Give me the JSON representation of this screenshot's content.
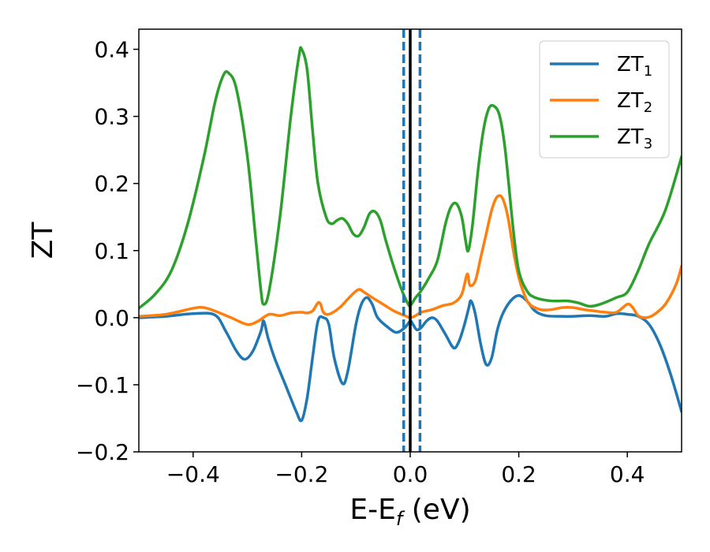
{
  "chart_data": {
    "type": "line",
    "xlabel": "E-E",
    "xlabel_sub": "f",
    "xlabel_unit": " (eV)",
    "ylabel": "ZT",
    "xlim": [
      -0.5,
      0.5
    ],
    "ylim": [
      -0.2,
      0.43
    ],
    "xticks": [
      -0.4,
      -0.2,
      0.0,
      0.2,
      0.4
    ],
    "xtick_labels": [
      "−0.4",
      "−0.2",
      "0.0",
      "0.2",
      "0.4"
    ],
    "yticks": [
      -0.2,
      -0.1,
      0.0,
      0.1,
      0.2,
      0.3,
      0.4
    ],
    "ytick_labels": [
      "−0.2",
      "−0.1",
      "0.0",
      "0.1",
      "0.2",
      "0.3",
      "0.4"
    ],
    "grid": false,
    "legend_position": "top-right",
    "vlines": [
      {
        "x": 0.0,
        "color": "#000000",
        "style": "solid"
      },
      {
        "x": -0.012,
        "color": "#1f77b4",
        "style": "dashed"
      },
      {
        "x": 0.018,
        "color": "#1f77b4",
        "style": "dashed"
      }
    ],
    "series": [
      {
        "name": "ZT",
        "name_sub": "1",
        "color": "#1f77b4",
        "points": [
          [
            -0.5,
            0.0
          ],
          [
            -0.45,
            0.002
          ],
          [
            -0.4,
            0.006
          ],
          [
            -0.36,
            0.004
          ],
          [
            -0.34,
            -0.02
          ],
          [
            -0.32,
            -0.05
          ],
          [
            -0.305,
            -0.062
          ],
          [
            -0.29,
            -0.05
          ],
          [
            -0.275,
            -0.02
          ],
          [
            -0.27,
            -0.005
          ],
          [
            -0.262,
            -0.03
          ],
          [
            -0.25,
            -0.06
          ],
          [
            -0.23,
            -0.1
          ],
          [
            -0.21,
            -0.14
          ],
          [
            -0.2,
            -0.153
          ],
          [
            -0.19,
            -0.12
          ],
          [
            -0.18,
            -0.06
          ],
          [
            -0.17,
            -0.005
          ],
          [
            -0.16,
            0.0
          ],
          [
            -0.15,
            -0.01
          ],
          [
            -0.14,
            -0.06
          ],
          [
            -0.125,
            -0.098
          ],
          [
            -0.115,
            -0.08
          ],
          [
            -0.1,
            -0.01
          ],
          [
            -0.09,
            0.02
          ],
          [
            -0.08,
            0.03
          ],
          [
            -0.07,
            0.02
          ],
          [
            -0.06,
            0.0
          ],
          [
            -0.04,
            -0.015
          ],
          [
            -0.025,
            -0.022
          ],
          [
            -0.01,
            -0.015
          ],
          [
            0.0,
            -0.005
          ],
          [
            0.005,
            -0.01
          ],
          [
            0.012,
            -0.018
          ],
          [
            0.02,
            -0.015
          ],
          [
            0.03,
            -0.005
          ],
          [
            0.04,
            0.0
          ],
          [
            0.05,
            -0.005
          ],
          [
            0.065,
            -0.025
          ],
          [
            0.08,
            -0.045
          ],
          [
            0.09,
            -0.035
          ],
          [
            0.1,
            -0.01
          ],
          [
            0.108,
            0.015
          ],
          [
            0.112,
            0.025
          ],
          [
            0.12,
            0.005
          ],
          [
            0.13,
            -0.04
          ],
          [
            0.14,
            -0.07
          ],
          [
            0.15,
            -0.06
          ],
          [
            0.16,
            -0.02
          ],
          [
            0.17,
            0.005
          ],
          [
            0.185,
            0.025
          ],
          [
            0.2,
            0.033
          ],
          [
            0.215,
            0.025
          ],
          [
            0.23,
            0.01
          ],
          [
            0.25,
            0.003
          ],
          [
            0.28,
            0.002
          ],
          [
            0.3,
            0.002
          ],
          [
            0.33,
            0.003
          ],
          [
            0.36,
            0.002
          ],
          [
            0.38,
            0.006
          ],
          [
            0.4,
            0.005
          ],
          [
            0.42,
            0.002
          ],
          [
            0.44,
            -0.01
          ],
          [
            0.46,
            -0.04
          ],
          [
            0.48,
            -0.085
          ],
          [
            0.5,
            -0.14
          ]
        ]
      },
      {
        "name": "ZT",
        "name_sub": "2",
        "color": "#ff7f0e",
        "points": [
          [
            -0.5,
            0.002
          ],
          [
            -0.45,
            0.005
          ],
          [
            -0.4,
            0.014
          ],
          [
            -0.38,
            0.015
          ],
          [
            -0.36,
            0.01
          ],
          [
            -0.33,
            0.0
          ],
          [
            -0.3,
            -0.01
          ],
          [
            -0.28,
            -0.005
          ],
          [
            -0.26,
            0.005
          ],
          [
            -0.24,
            0.003
          ],
          [
            -0.22,
            0.007
          ],
          [
            -0.2,
            0.008
          ],
          [
            -0.19,
            0.007
          ],
          [
            -0.18,
            0.01
          ],
          [
            -0.17,
            0.022
          ],
          [
            -0.165,
            0.02
          ],
          [
            -0.16,
            0.008
          ],
          [
            -0.15,
            0.005
          ],
          [
            -0.13,
            0.015
          ],
          [
            -0.11,
            0.032
          ],
          [
            -0.095,
            0.042
          ],
          [
            -0.085,
            0.038
          ],
          [
            -0.07,
            0.03
          ],
          [
            -0.05,
            0.02
          ],
          [
            -0.03,
            0.01
          ],
          [
            -0.01,
            0.003
          ],
          [
            0.0,
            0.0
          ],
          [
            0.01,
            0.003
          ],
          [
            0.02,
            0.008
          ],
          [
            0.04,
            0.012
          ],
          [
            0.06,
            0.018
          ],
          [
            0.08,
            0.022
          ],
          [
            0.095,
            0.035
          ],
          [
            0.105,
            0.065
          ],
          [
            0.11,
            0.048
          ],
          [
            0.12,
            0.055
          ],
          [
            0.13,
            0.09
          ],
          [
            0.14,
            0.125
          ],
          [
            0.15,
            0.16
          ],
          [
            0.16,
            0.18
          ],
          [
            0.17,
            0.178
          ],
          [
            0.18,
            0.15
          ],
          [
            0.19,
            0.1
          ],
          [
            0.2,
            0.06
          ],
          [
            0.21,
            0.035
          ],
          [
            0.22,
            0.02
          ],
          [
            0.24,
            0.012
          ],
          [
            0.26,
            0.012
          ],
          [
            0.28,
            0.015
          ],
          [
            0.3,
            0.015
          ],
          [
            0.32,
            0.012
          ],
          [
            0.34,
            0.01
          ],
          [
            0.36,
            0.008
          ],
          [
            0.38,
            0.008
          ],
          [
            0.4,
            0.02
          ],
          [
            0.41,
            0.015
          ],
          [
            0.42,
            0.003
          ],
          [
            0.435,
            0.0
          ],
          [
            0.45,
            0.005
          ],
          [
            0.47,
            0.02
          ],
          [
            0.49,
            0.05
          ],
          [
            0.5,
            0.077
          ]
        ]
      },
      {
        "name": "ZT",
        "name_sub": "3",
        "color": "#2ca02c",
        "points": [
          [
            -0.5,
            0.014
          ],
          [
            -0.47,
            0.035
          ],
          [
            -0.44,
            0.07
          ],
          [
            -0.41,
            0.14
          ],
          [
            -0.38,
            0.24
          ],
          [
            -0.36,
            0.32
          ],
          [
            -0.345,
            0.36
          ],
          [
            -0.335,
            0.365
          ],
          [
            -0.32,
            0.34
          ],
          [
            -0.3,
            0.24
          ],
          [
            -0.285,
            0.12
          ],
          [
            -0.275,
            0.04
          ],
          [
            -0.27,
            0.02
          ],
          [
            -0.26,
            0.04
          ],
          [
            -0.24,
            0.15
          ],
          [
            -0.22,
            0.3
          ],
          [
            -0.205,
            0.39
          ],
          [
            -0.2,
            0.4
          ],
          [
            -0.19,
            0.37
          ],
          [
            -0.18,
            0.28
          ],
          [
            -0.17,
            0.2
          ],
          [
            -0.155,
            0.15
          ],
          [
            -0.145,
            0.14
          ],
          [
            -0.135,
            0.145
          ],
          [
            -0.125,
            0.148
          ],
          [
            -0.115,
            0.14
          ],
          [
            -0.105,
            0.125
          ],
          [
            -0.095,
            0.122
          ],
          [
            -0.085,
            0.135
          ],
          [
            -0.075,
            0.155
          ],
          [
            -0.065,
            0.158
          ],
          [
            -0.055,
            0.145
          ],
          [
            -0.045,
            0.115
          ],
          [
            -0.03,
            0.075
          ],
          [
            -0.015,
            0.04
          ],
          [
            -0.005,
            0.022
          ],
          [
            0.0,
            0.018
          ],
          [
            0.01,
            0.03
          ],
          [
            0.02,
            0.04
          ],
          [
            0.035,
            0.06
          ],
          [
            0.05,
            0.085
          ],
          [
            0.065,
            0.14
          ],
          [
            0.075,
            0.165
          ],
          [
            0.085,
            0.17
          ],
          [
            0.095,
            0.15
          ],
          [
            0.102,
            0.115
          ],
          [
            0.107,
            0.1
          ],
          [
            0.115,
            0.14
          ],
          [
            0.125,
            0.22
          ],
          [
            0.135,
            0.28
          ],
          [
            0.145,
            0.312
          ],
          [
            0.155,
            0.315
          ],
          [
            0.165,
            0.3
          ],
          [
            0.175,
            0.25
          ],
          [
            0.19,
            0.13
          ],
          [
            0.2,
            0.07
          ],
          [
            0.215,
            0.04
          ],
          [
            0.23,
            0.03
          ],
          [
            0.26,
            0.025
          ],
          [
            0.29,
            0.025
          ],
          [
            0.31,
            0.022
          ],
          [
            0.33,
            0.017
          ],
          [
            0.35,
            0.02
          ],
          [
            0.38,
            0.03
          ],
          [
            0.4,
            0.038
          ],
          [
            0.42,
            0.07
          ],
          [
            0.44,
            0.11
          ],
          [
            0.47,
            0.16
          ],
          [
            0.5,
            0.24
          ]
        ]
      }
    ]
  }
}
